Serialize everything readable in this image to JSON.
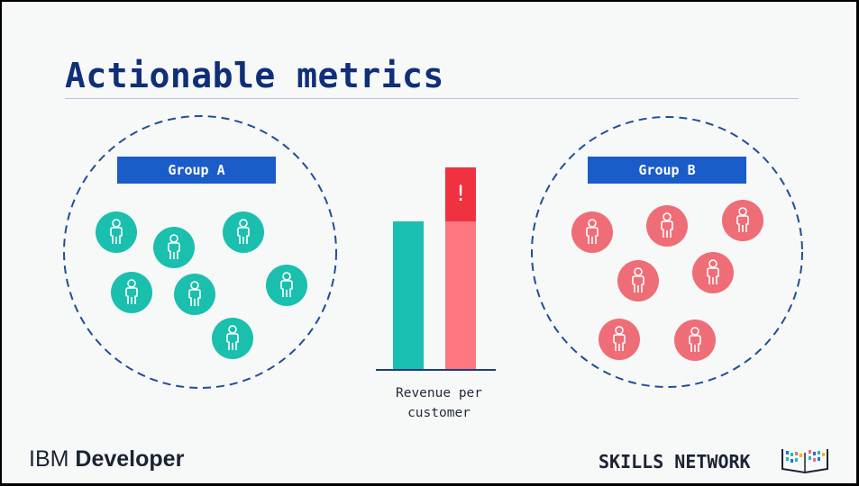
{
  "title": "Actionable metrics",
  "group_a": {
    "label": "Group A",
    "color": "#1bbfae",
    "people_count": 7
  },
  "group_b": {
    "label": "Group B",
    "color": "#ef6d76",
    "people_count": 7
  },
  "bar_chart": {
    "caption_line1": "Revenue per",
    "caption_line2": "customer",
    "alert_symbol": "!",
    "bars": [
      {
        "group": "Group A",
        "color": "#19bfb0"
      },
      {
        "group": "Group B",
        "color": "#fd7680",
        "highlight_color": "#f0313f"
      }
    ]
  },
  "footer": {
    "brand_left_light": "IBM ",
    "brand_left_bold": "Developer",
    "brand_right": "SKILLS NETWORK",
    "brand_right_icon": "skills-network-book-icon"
  }
}
